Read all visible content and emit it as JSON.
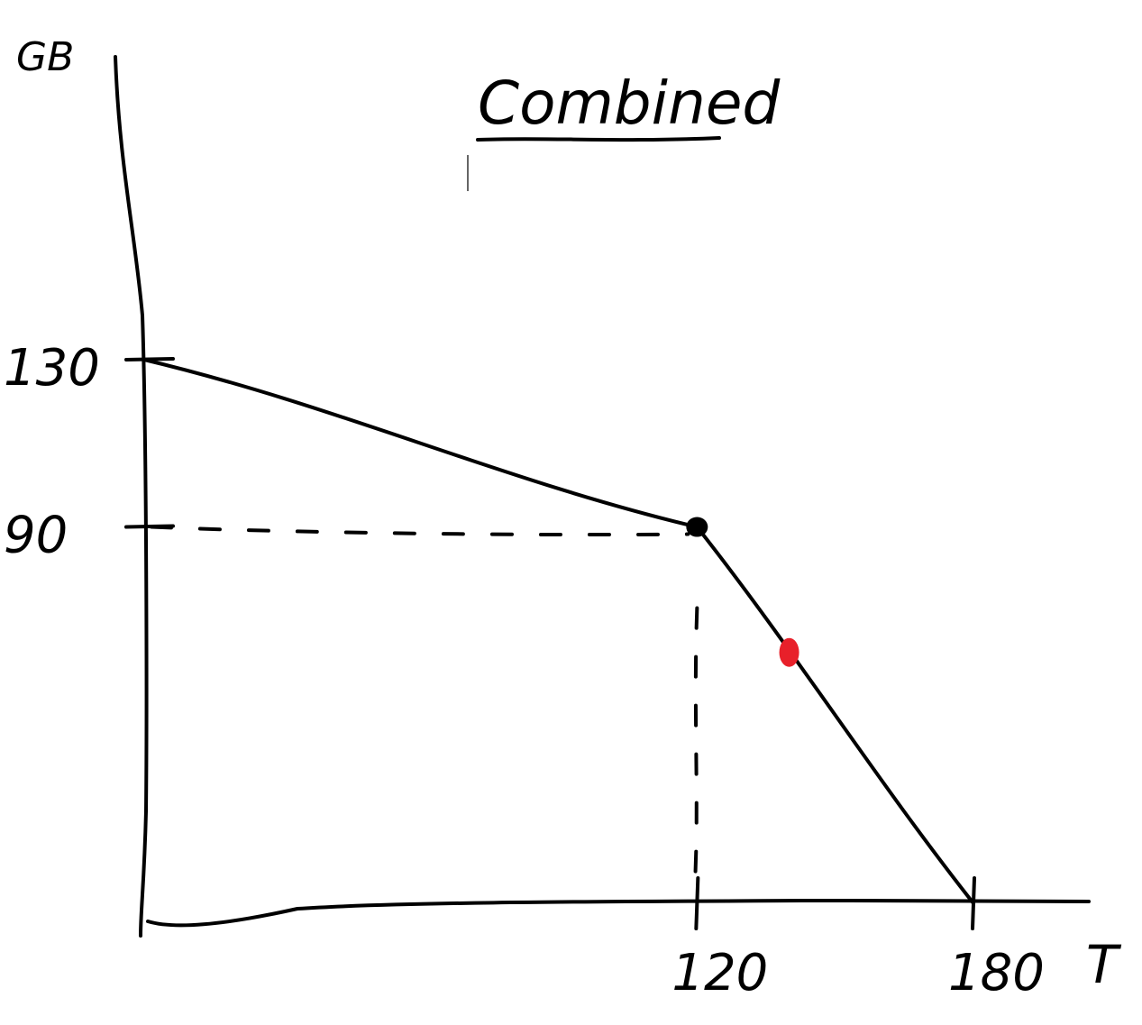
{
  "chart_data": {
    "type": "line",
    "title": "Combined",
    "xlabel": "T",
    "ylabel": "GB",
    "xlim": [
      0,
      180
    ],
    "ylim": [
      0,
      130
    ],
    "x_ticks": [
      120,
      180
    ],
    "y_ticks": [
      130,
      90
    ],
    "x_tick_labels": [
      "120",
      "180"
    ],
    "y_tick_labels": [
      "130",
      "90"
    ],
    "series": [
      {
        "x": [
          0,
          120,
          180
        ],
        "y": [
          130,
          90,
          0
        ]
      }
    ],
    "guides": {
      "x": 120,
      "y": 90
    },
    "kink_point": {
      "x": 120,
      "y": 90,
      "color": "#000000"
    },
    "highlight_point": {
      "x": 140,
      "y": 60,
      "color": "#e8202a"
    },
    "grid": false
  }
}
